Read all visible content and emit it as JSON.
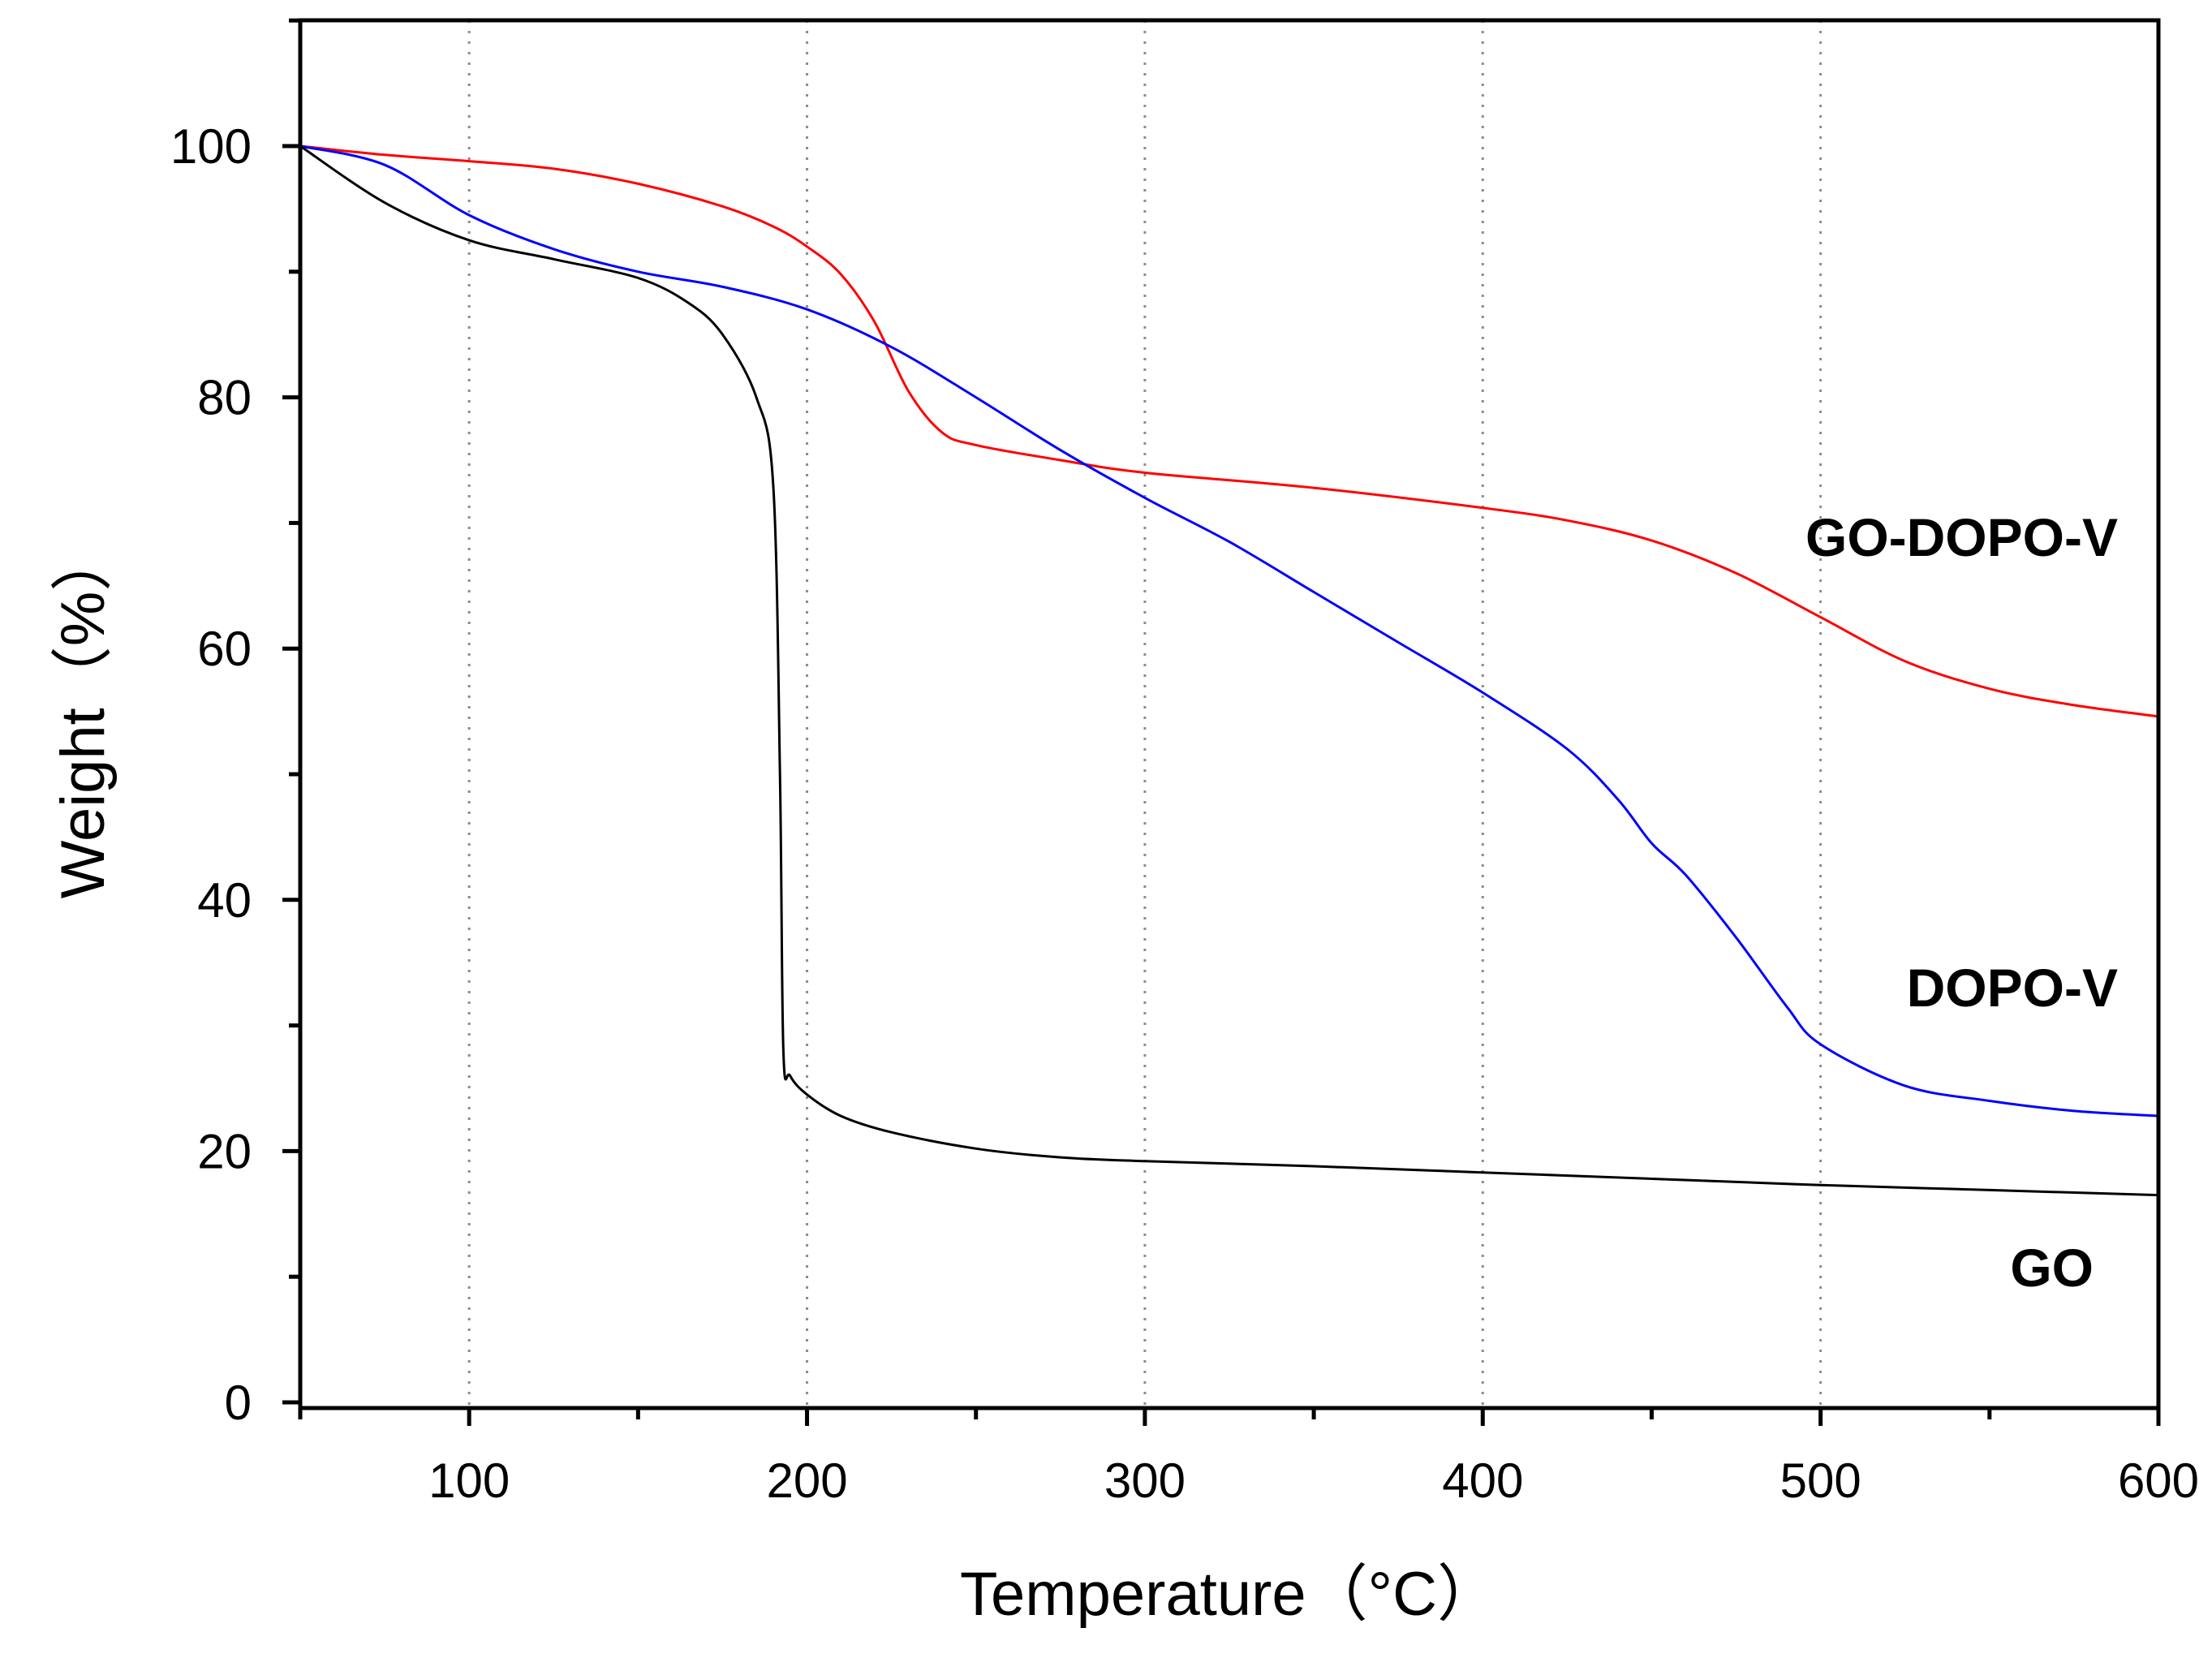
{
  "chart_data": {
    "type": "line",
    "title": "",
    "xlabel": "Temperature（°C）",
    "ylabel": "Weight（%）",
    "xlim": [
      50,
      600
    ],
    "ylim": [
      0,
      110
    ],
    "x_ticks": [
      100,
      200,
      300,
      400,
      500,
      600
    ],
    "y_ticks": [
      0,
      20,
      40,
      60,
      80,
      100
    ],
    "grid": "vertical dotted at major x ticks",
    "legend": "none (series labelled directly on plot)",
    "series": [
      {
        "name": "GO-DOPO-V",
        "color": "#ff0000",
        "x": [
          50,
          75,
          100,
          125,
          150,
          175,
          190,
          200,
          210,
          220,
          230,
          240,
          250,
          275,
          300,
          350,
          400,
          425,
          450,
          475,
          500,
          525,
          550,
          575,
          600
        ],
        "y": [
          100,
          99.3,
          98.8,
          98.2,
          97,
          95.2,
          93.6,
          92,
          89.8,
          86,
          80.5,
          77.2,
          76.2,
          75,
          74,
          72.8,
          71.2,
          70.2,
          68.6,
          66,
          62.5,
          59,
          56.8,
          55.5,
          54.6
        ]
      },
      {
        "name": "DOPO-V",
        "color": "#0000ff",
        "x": [
          50,
          75,
          100,
          125,
          150,
          175,
          200,
          225,
          250,
          275,
          300,
          325,
          350,
          375,
          400,
          425,
          440,
          450,
          460,
          475,
          490,
          500,
          525,
          550,
          575,
          600
        ],
        "y": [
          100,
          98.5,
          94.5,
          91.8,
          90,
          88.8,
          87,
          84,
          80,
          75.8,
          72,
          68.5,
          64.5,
          60.5,
          56.5,
          52,
          48,
          44.5,
          42,
          37,
          31.5,
          28.5,
          25.2,
          24,
          23.2,
          22.8
        ]
      },
      {
        "name": "GO",
        "color": "#000000",
        "x": [
          50,
          75,
          100,
          125,
          150,
          165,
          175,
          185,
          190,
          192,
          193,
          195,
          200,
          210,
          225,
          250,
          275,
          300,
          350,
          400,
          450,
          500,
          550,
          600
        ],
        "y": [
          100,
          95.5,
          92.5,
          91,
          89.5,
          87.5,
          85,
          80,
          73,
          50,
          28,
          26,
          24.5,
          22.8,
          21.5,
          20.2,
          19.5,
          19.2,
          18.8,
          18.3,
          17.8,
          17.3,
          16.9,
          16.5
        ]
      }
    ]
  },
  "labels": {
    "go_dopo_v": "GO-DOPO-V",
    "dopo_v": "DOPO-V",
    "go": "GO"
  }
}
